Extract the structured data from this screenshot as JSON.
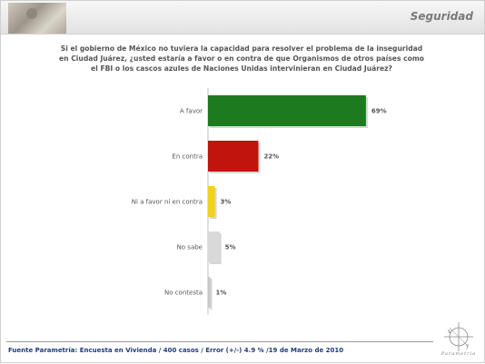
{
  "header": {
    "section_title": "Seguridad"
  },
  "question": "Si el gobierno de México no tuviera la capacidad para resolver el problema de la inseguridad en Ciudad Juárez, ¿usted estaría a favor o en contra de que Organismos de otros países como el FBI o los cascos azules de Naciones Unidas intervinieran en Ciudad Juárez?",
  "footer": {
    "source": "Fuente Parametría: Encuesta en Vivienda /  400 casos / Error (+/-) 4.9 % /19 de Marzo de 2010"
  },
  "logo": {
    "name": "Parametría"
  },
  "chart_data": {
    "type": "bar",
    "orientation": "horizontal",
    "categories": [
      "A favor",
      "En contra",
      "Ni a favor ni en contra",
      "No sabe",
      "No contesta"
    ],
    "values": [
      69,
      22,
      3,
      5,
      1
    ],
    "value_labels": [
      "69%",
      "22%",
      "3%",
      "5%",
      "1%"
    ],
    "unit": "%",
    "colors": [
      "#1e7a1e",
      "#c0140c",
      "#f2d21a",
      "#d9d9d9",
      "#c8c8c8"
    ],
    "xlim": [
      0,
      100
    ],
    "grid": false,
    "legend": "none"
  }
}
